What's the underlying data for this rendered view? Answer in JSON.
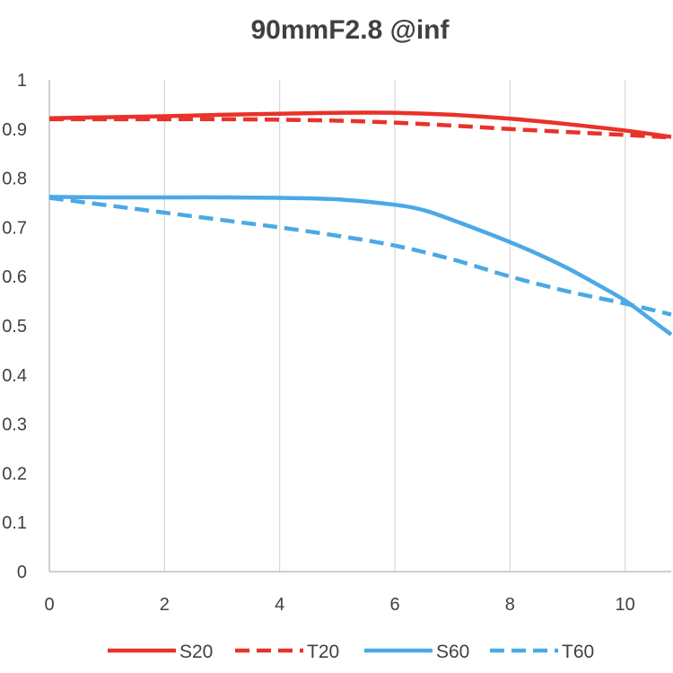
{
  "chart_data": {
    "type": "line",
    "title": "90mmF2.8 @inf",
    "xlabel": "",
    "ylabel": "",
    "xlim": [
      0,
      10.8
    ],
    "ylim": [
      0,
      1
    ],
    "x_ticks": [
      0,
      2,
      4,
      6,
      8,
      10
    ],
    "y_ticks": [
      0,
      0.1,
      0.2,
      0.3,
      0.4,
      0.5,
      0.6,
      0.7,
      0.8,
      0.9,
      1
    ],
    "grid": "vertical",
    "legend_position": "bottom",
    "colors": {
      "red": "#e8322a",
      "blue": "#4aa9e6"
    },
    "series": [
      {
        "name": "S20",
        "color": "#e8322a",
        "dash": "solid",
        "points": [
          [
            0,
            0.922
          ],
          [
            1,
            0.924
          ],
          [
            2,
            0.926
          ],
          [
            3,
            0.929
          ],
          [
            4,
            0.931
          ],
          [
            5,
            0.933
          ],
          [
            6,
            0.933
          ],
          [
            7,
            0.929
          ],
          [
            8,
            0.921
          ],
          [
            9,
            0.91
          ],
          [
            10,
            0.897
          ],
          [
            10.8,
            0.884
          ]
        ]
      },
      {
        "name": "T20",
        "color": "#e8322a",
        "dash": "dashed",
        "points": [
          [
            0,
            0.92
          ],
          [
            1,
            0.92
          ],
          [
            2,
            0.92
          ],
          [
            3,
            0.92
          ],
          [
            4,
            0.919
          ],
          [
            5,
            0.917
          ],
          [
            6,
            0.913
          ],
          [
            7,
            0.907
          ],
          [
            8,
            0.9
          ],
          [
            9,
            0.894
          ],
          [
            10,
            0.888
          ],
          [
            10.8,
            0.883
          ]
        ]
      },
      {
        "name": "S60",
        "color": "#4aa9e6",
        "dash": "solid",
        "points": [
          [
            0,
            0.762
          ],
          [
            1,
            0.761
          ],
          [
            2,
            0.761
          ],
          [
            3,
            0.761
          ],
          [
            4,
            0.76
          ],
          [
            5,
            0.757
          ],
          [
            6,
            0.746
          ],
          [
            6.5,
            0.735
          ],
          [
            7,
            0.715
          ],
          [
            7.5,
            0.693
          ],
          [
            8,
            0.67
          ],
          [
            8.5,
            0.645
          ],
          [
            9,
            0.617
          ],
          [
            9.5,
            0.585
          ],
          [
            10,
            0.551
          ],
          [
            10.5,
            0.508
          ],
          [
            10.8,
            0.482
          ]
        ]
      },
      {
        "name": "T60",
        "color": "#4aa9e6",
        "dash": "dashed",
        "points": [
          [
            0,
            0.76
          ],
          [
            1,
            0.745
          ],
          [
            2,
            0.73
          ],
          [
            3,
            0.715
          ],
          [
            4,
            0.7
          ],
          [
            5,
            0.683
          ],
          [
            6,
            0.663
          ],
          [
            7,
            0.635
          ],
          [
            8,
            0.6
          ],
          [
            9,
            0.57
          ],
          [
            10,
            0.545
          ],
          [
            10.8,
            0.523
          ]
        ]
      }
    ]
  }
}
